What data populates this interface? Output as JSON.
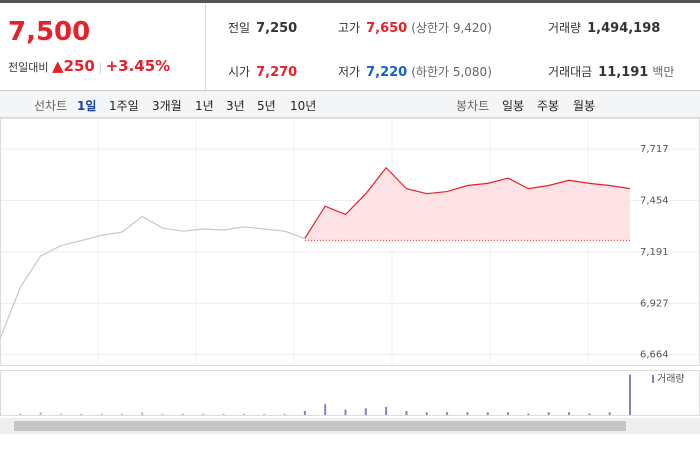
{
  "header": {
    "price": "7,500",
    "change_label": "전일대비",
    "change": "250",
    "rate": "+3.45%"
  },
  "stats": [
    [
      {
        "label": "전일",
        "value": "7,250"
      },
      {
        "label": "고가",
        "value": "7,650",
        "extra": "(상한가 9,420)"
      },
      {
        "label": "거래량",
        "value": "1,494,198"
      }
    ],
    [
      {
        "label": "시가",
        "value": "7,270"
      },
      {
        "label": "저가",
        "value": "7,220",
        "extra": "(하한가 5,080)"
      },
      {
        "label": "거래대금",
        "value": "11,191",
        "extra": "백만"
      }
    ]
  ],
  "tabs": {
    "line_label": "선차트",
    "line_items": [
      "1일",
      "1주일",
      "3개월",
      "1년",
      "3년",
      "5년",
      "10년"
    ],
    "candle_label": "봉차트",
    "candle_items": [
      "일봉",
      "주봉",
      "월봉"
    ]
  },
  "chart_data": {
    "type": "line",
    "categories": [
      null,
      null,
      null,
      null,
      null,
      null,
      null,
      null,
      null,
      null,
      null,
      null,
      null,
      null,
      null,
      null,
      null,
      null,
      null,
      null,
      null,
      null,
      null,
      null,
      null,
      null,
      null,
      null,
      null,
      null,
      null,
      null
    ],
    "series": [
      {
        "color": "#c8c8c8",
        "values": [
          6744,
          7010,
          7170,
          7223,
          7249,
          7276,
          7292,
          7372,
          7313,
          7297,
          7308,
          7303,
          7319,
          7308,
          7297,
          7260,
          null,
          null,
          null,
          null,
          null,
          null,
          null,
          null,
          null,
          null,
          null,
          null,
          null,
          null,
          null,
          null
        ]
      },
      {
        "color": "#e8202a",
        "values": [
          null,
          null,
          null,
          null,
          null,
          null,
          null,
          null,
          null,
          null,
          null,
          null,
          null,
          null,
          null,
          7260,
          7425,
          7382,
          7489,
          7622,
          7515,
          7489,
          7500,
          7531,
          7542,
          7569,
          7515,
          7531,
          7558,
          7542,
          7531,
          7515
        ]
      }
    ],
    "baseline": 7250,
    "ylim": [
      6611,
      7877
    ],
    "yticks": [
      {
        "value": 6664,
        "label": "6,664"
      },
      {
        "value": 6927,
        "label": "6,927"
      },
      {
        "value": 7191,
        "label": "7,191"
      },
      {
        "value": 7454,
        "label": "7,454"
      },
      {
        "value": 7717,
        "label": "7,717"
      }
    ],
    "volume_label": "거래량",
    "volume": [
      1,
      1,
      2,
      1,
      1,
      1,
      1,
      2,
      1,
      1,
      1,
      1,
      1,
      1,
      1,
      3,
      8,
      4,
      5,
      6,
      3,
      2,
      2,
      2,
      2,
      2,
      1,
      2,
      2,
      1,
      2,
      30
    ],
    "volume_lim": [
      0,
      32
    ],
    "grid": true
  }
}
